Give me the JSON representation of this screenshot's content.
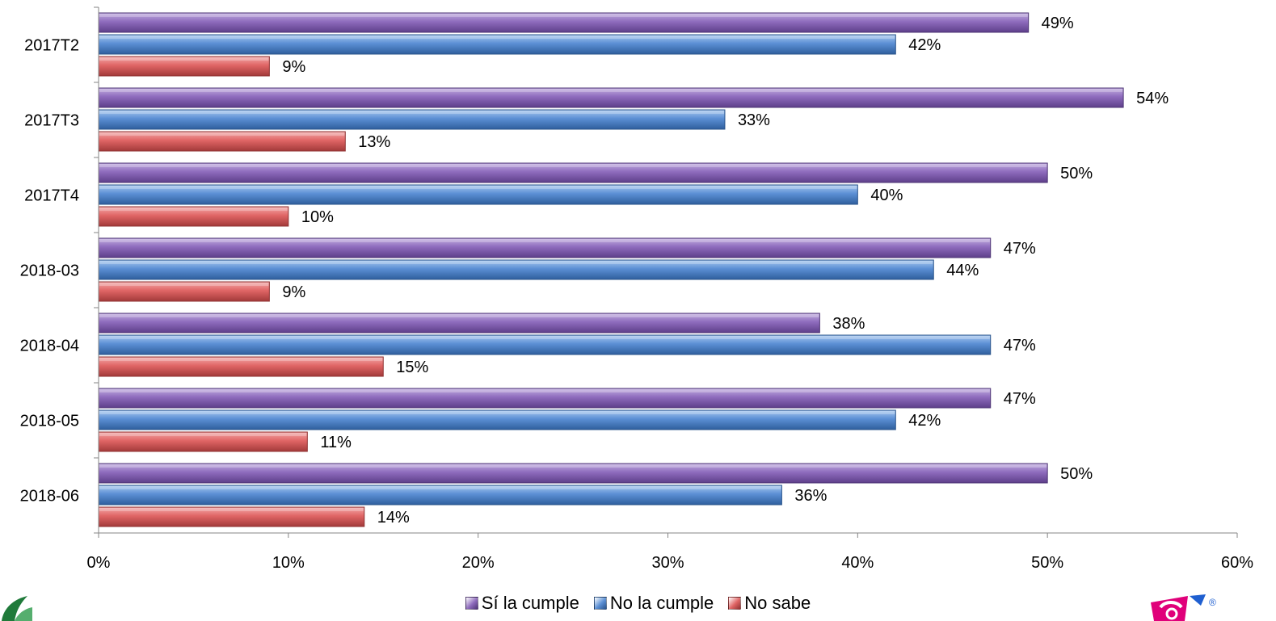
{
  "chart_data": {
    "type": "bar",
    "orientation": "horizontal",
    "categories": [
      "2017T2",
      "2017T3",
      "2017T4",
      "2018-03",
      "2018-04",
      "2018-05",
      "2018-06"
    ],
    "series": [
      {
        "name": "Sí la cumple",
        "color": "#8e6bbd",
        "values": [
          49,
          54,
          50,
          47,
          38,
          47,
          50
        ],
        "labels": [
          "49%",
          "54%",
          "50%",
          "47%",
          "38%",
          "47%",
          "50%"
        ]
      },
      {
        "name": "No la cumple",
        "color": "#5b8fd4",
        "values": [
          42,
          33,
          40,
          44,
          47,
          42,
          36
        ],
        "labels": [
          "42%",
          "33%",
          "40%",
          "44%",
          "47%",
          "42%",
          "36%"
        ]
      },
      {
        "name": "No sabe",
        "color": "#e06565",
        "values": [
          9,
          13,
          10,
          9,
          15,
          11,
          14
        ],
        "labels": [
          "9%",
          "13%",
          "10%",
          "9%",
          "15%",
          "11%",
          "14%"
        ]
      }
    ],
    "xlim": [
      0,
      60
    ],
    "x_ticks": [
      0,
      10,
      20,
      30,
      40,
      50,
      60
    ],
    "x_tick_labels": [
      "0%",
      "10%",
      "20%",
      "30%",
      "40%",
      "50%",
      "60%"
    ],
    "legend_position": "bottom",
    "grid": false
  },
  "logos": {
    "left": {
      "icon": "leaf-logo-icon",
      "color": "#1f7a3a"
    },
    "right": {
      "icon": "brand-logo-icon",
      "color": "#e0007a",
      "accent": "#1f5fd0",
      "mark": "®"
    }
  }
}
